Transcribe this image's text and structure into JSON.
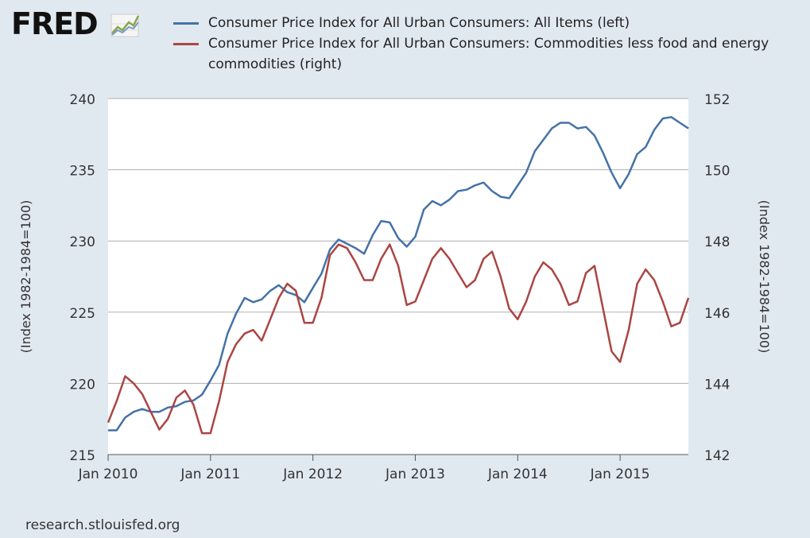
{
  "header": {
    "logo_text": "FRED",
    "logo_icon": "line-graph-icon"
  },
  "legend": [
    {
      "label": "Consumer Price Index for All Urban Consumers: All Items (left)",
      "color": "#4572a7"
    },
    {
      "label": "Consumer Price Index for All Urban Consumers: Commodities less food and energy commodities (right)",
      "color": "#aa4643"
    }
  ],
  "footer": {
    "source": "research.stlouisfed.org"
  },
  "chart_data": {
    "type": "line",
    "xlabel": "",
    "x_ticks": [
      "Jan 2010",
      "Jan 2011",
      "Jan 2012",
      "Jan 2013",
      "Jan 2014",
      "Jan 2015"
    ],
    "x_range": [
      "2010-01",
      "2015-09"
    ],
    "y_left": {
      "label": "(Index 1982-1984=100)",
      "ticks": [
        215,
        220,
        225,
        230,
        235,
        240
      ],
      "range": [
        215,
        240
      ]
    },
    "y_right": {
      "label": "(Index 1982-1984=100)",
      "ticks": [
        142,
        144,
        146,
        148,
        150,
        152
      ],
      "range": [
        142,
        152
      ]
    },
    "grid": true,
    "series": [
      {
        "name": "Consumer Price Index for All Urban Consumers: All Items (left)",
        "axis": "left",
        "color": "#4572a7",
        "start": "2010-01",
        "values": [
          216.7,
          216.7,
          217.6,
          218.0,
          218.2,
          218.0,
          218.0,
          218.3,
          218.4,
          218.7,
          218.8,
          219.2,
          220.2,
          221.3,
          223.5,
          224.9,
          226.0,
          225.7,
          225.9,
          226.5,
          226.9,
          226.4,
          226.2,
          225.7,
          226.7,
          227.7,
          229.4,
          230.1,
          229.8,
          229.5,
          229.1,
          230.4,
          231.4,
          231.3,
          230.2,
          229.6,
          230.3,
          232.2,
          232.8,
          232.5,
          232.9,
          233.5,
          233.6,
          233.9,
          234.1,
          233.5,
          233.1,
          233.0,
          233.9,
          234.8,
          236.3,
          237.1,
          237.9,
          238.3,
          238.3,
          237.9,
          238.0,
          237.4,
          236.2,
          234.8,
          233.7,
          234.7,
          236.1,
          236.6,
          237.8,
          238.6,
          238.7,
          238.3,
          237.9
        ]
      },
      {
        "name": "Consumer Price Index for All Urban Consumers: Commodities less food and energy commodities (right)",
        "axis": "right",
        "color": "#aa4643",
        "start": "2010-01",
        "values": [
          142.9,
          143.5,
          144.2,
          144.0,
          143.7,
          143.2,
          142.7,
          143.0,
          143.6,
          143.8,
          143.4,
          142.6,
          142.6,
          143.5,
          144.6,
          145.1,
          145.4,
          145.5,
          145.2,
          145.8,
          146.4,
          146.8,
          146.6,
          145.7,
          145.7,
          146.4,
          147.6,
          147.9,
          147.8,
          147.4,
          146.9,
          146.9,
          147.5,
          147.9,
          147.3,
          146.2,
          146.3,
          146.9,
          147.5,
          147.8,
          147.5,
          147.1,
          146.7,
          146.9,
          147.5,
          147.7,
          147.0,
          146.1,
          145.8,
          146.3,
          147.0,
          147.4,
          147.2,
          146.8,
          146.2,
          146.3,
          147.1,
          147.3,
          146.1,
          144.9,
          144.6,
          145.5,
          146.8,
          147.2,
          146.9,
          146.3,
          145.6,
          145.7,
          146.4
        ]
      }
    ]
  }
}
